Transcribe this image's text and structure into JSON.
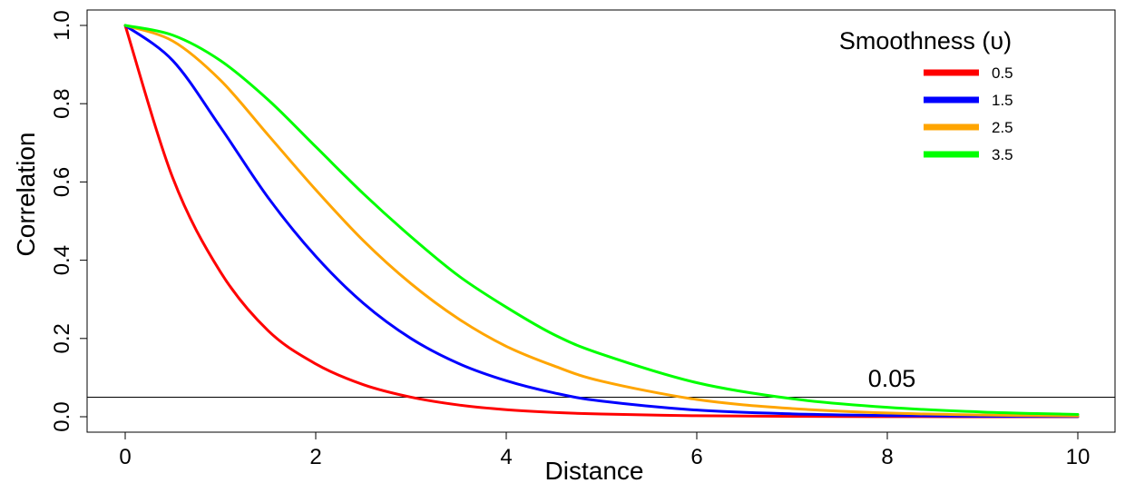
{
  "chart_data": {
    "type": "line",
    "xlabel": "Distance",
    "ylabel": "Correlation",
    "xlim": [
      0,
      10
    ],
    "ylim": [
      0,
      1
    ],
    "xticks": [
      "0",
      "2",
      "4",
      "6",
      "8",
      "10"
    ],
    "yticks": [
      "0.0",
      "0.2",
      "0.4",
      "0.6",
      "0.8",
      "1.0"
    ],
    "grid": false,
    "legend": {
      "title": "Smoothness (υ)",
      "placement": "top-right"
    },
    "x": [
      0,
      0.5,
      1,
      1.5,
      2,
      2.5,
      3,
      3.5,
      4,
      4.5,
      5,
      6,
      7,
      8,
      9,
      10
    ],
    "series": [
      {
        "name": "0.5",
        "color": "#ff0000",
        "values": [
          1.0,
          0.61,
          0.37,
          0.22,
          0.135,
          0.082,
          0.05,
          0.03,
          0.018,
          0.011,
          0.007,
          0.0025,
          0.0009,
          0.0003,
          0.0001,
          0.0
        ]
      },
      {
        "name": "1.5",
        "color": "#0000ff",
        "values": [
          1.0,
          0.91,
          0.74,
          0.56,
          0.41,
          0.29,
          0.2,
          0.136,
          0.092,
          0.061,
          0.04,
          0.017,
          0.0073,
          0.003,
          0.0012,
          0.0005
        ]
      },
      {
        "name": "2.5",
        "color": "#ffa500",
        "values": [
          1.0,
          0.96,
          0.86,
          0.72,
          0.58,
          0.45,
          0.34,
          0.25,
          0.18,
          0.13,
          0.091,
          0.044,
          0.021,
          0.0095,
          0.0043,
          0.0019
        ]
      },
      {
        "name": "3.5",
        "color": "#00ff00",
        "values": [
          1.0,
          0.975,
          0.91,
          0.81,
          0.69,
          0.57,
          0.46,
          0.36,
          0.28,
          0.21,
          0.16,
          0.087,
          0.046,
          0.024,
          0.012,
          0.0058
        ]
      }
    ],
    "reference_line": {
      "y": 0.05,
      "label": "0.05",
      "color": "#000000"
    }
  }
}
